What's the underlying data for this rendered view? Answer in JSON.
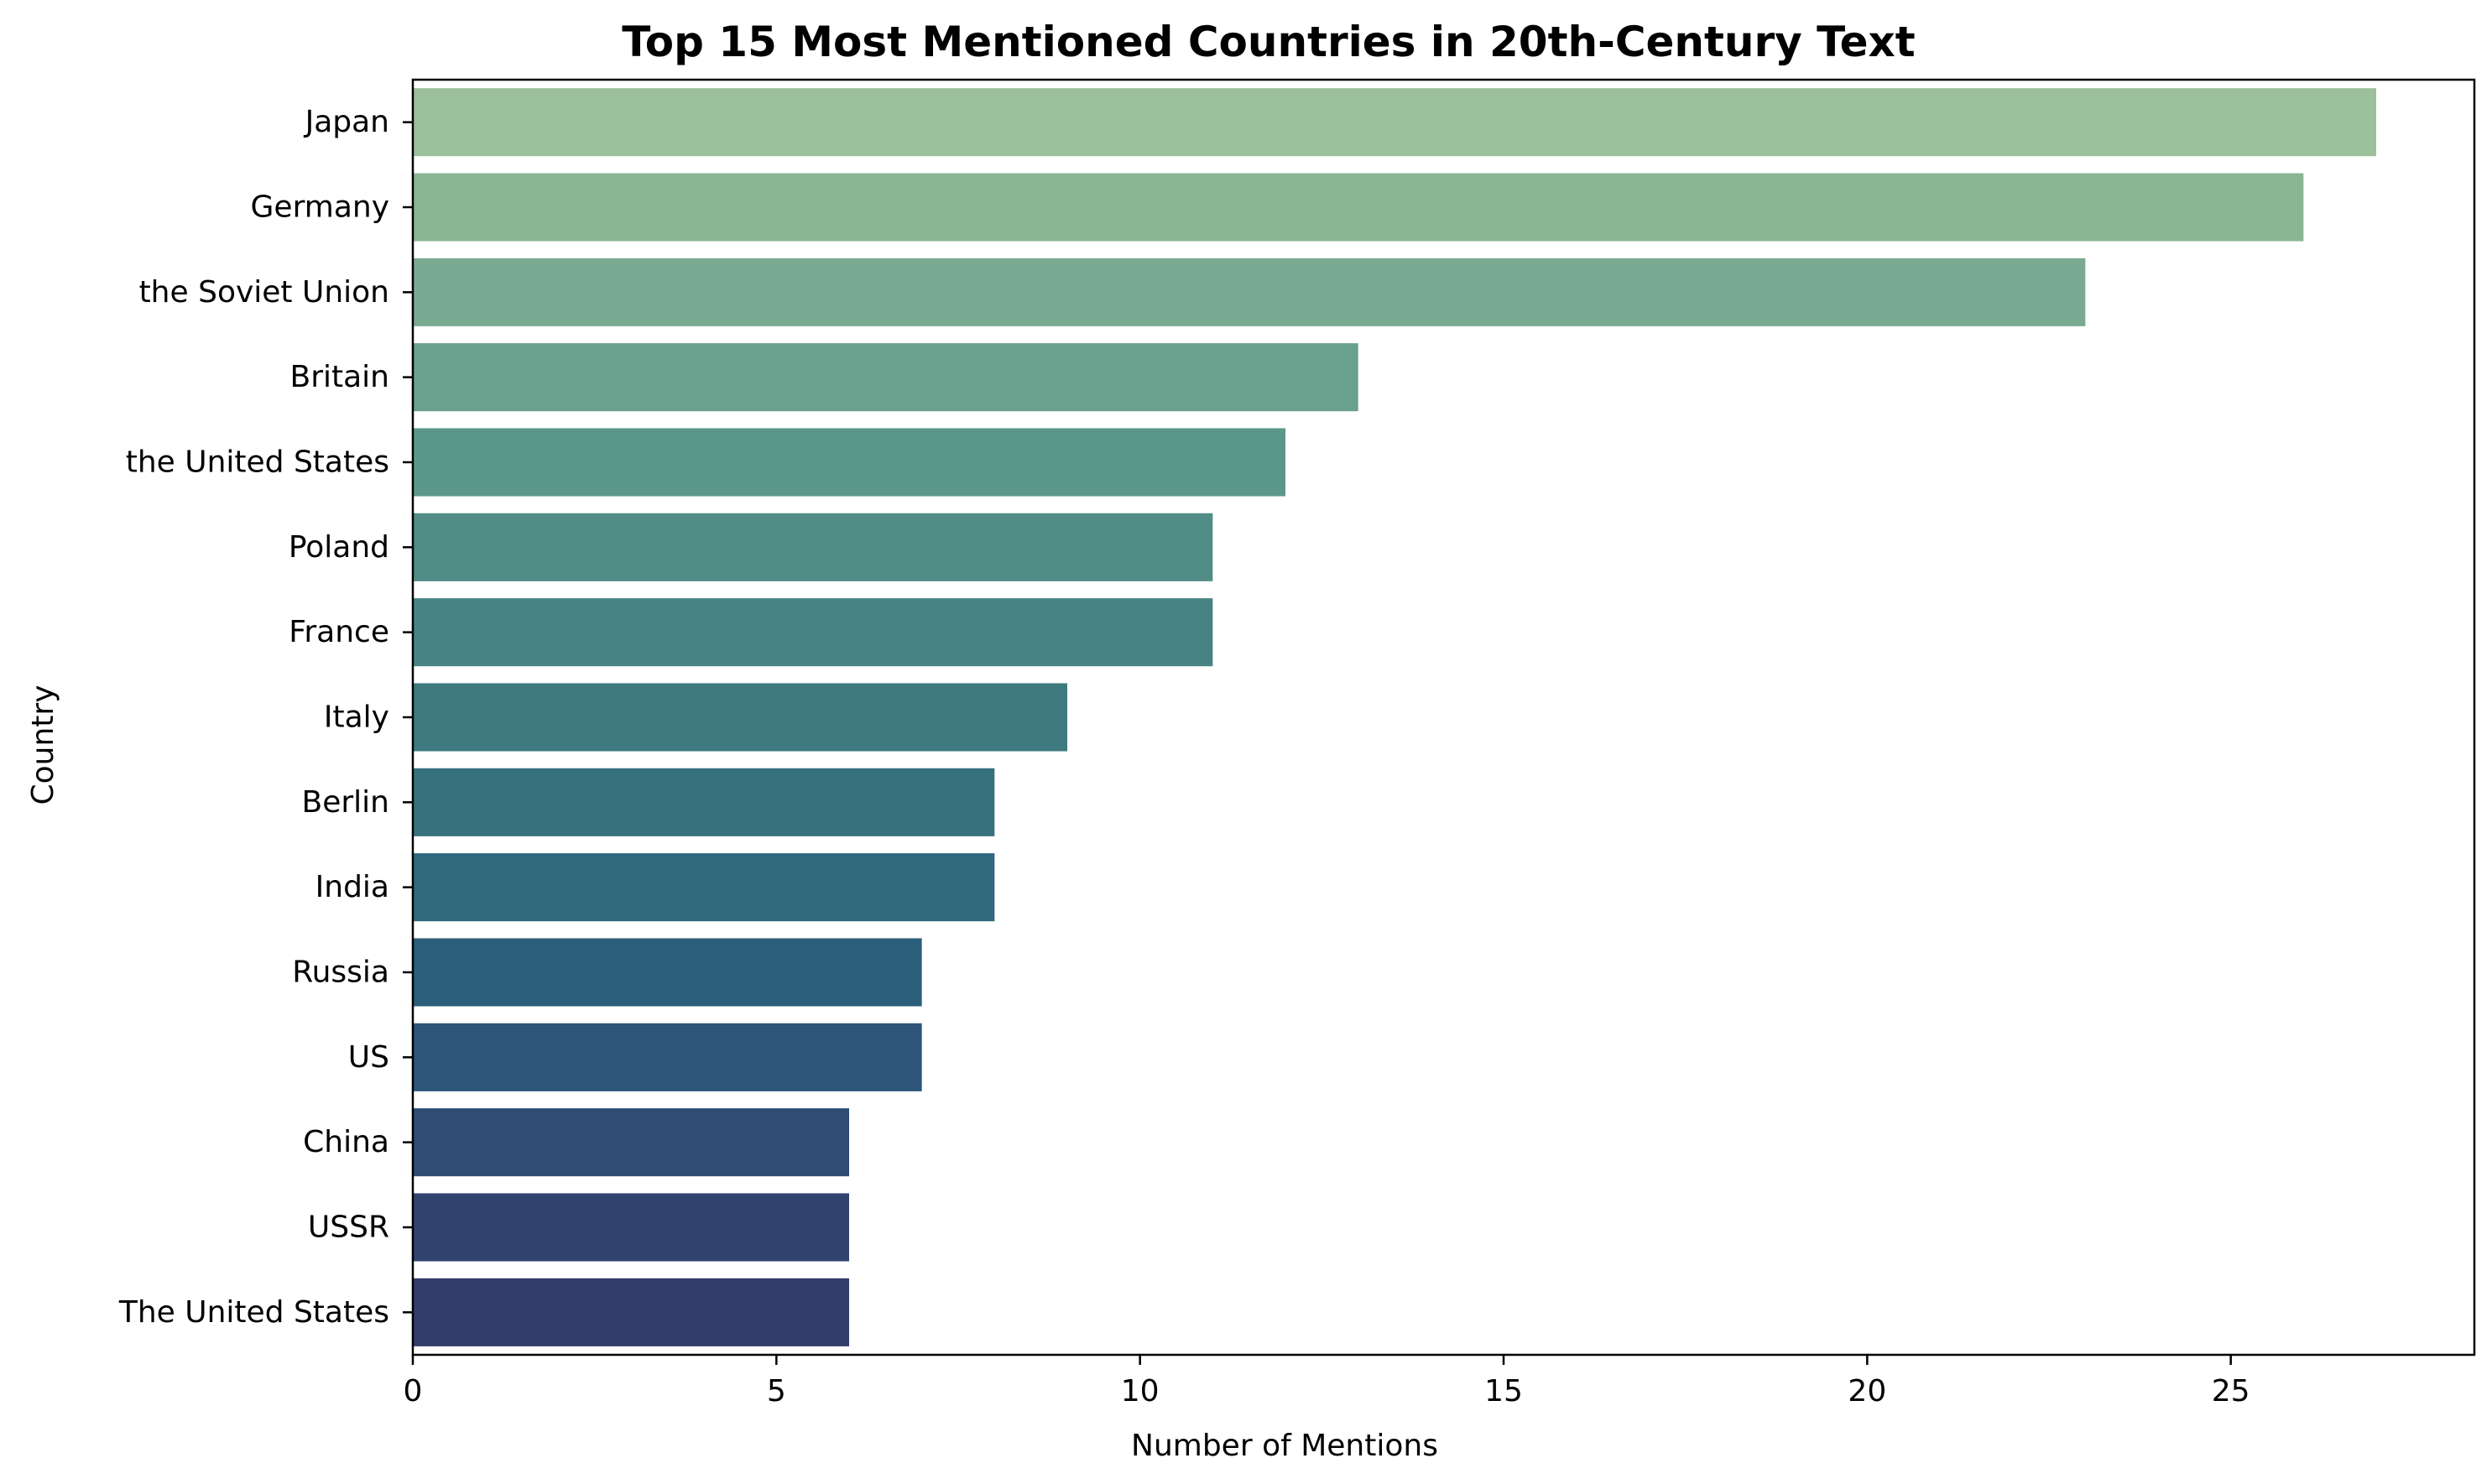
{
  "chart_data": {
    "type": "bar",
    "orientation": "horizontal",
    "title": "Top 15 Most Mentioned Countries in 20th-Century Text",
    "xlabel": "Number of Mentions",
    "ylabel": "Country",
    "xlim": [
      0,
      28.35
    ],
    "xticks": [
      0,
      5,
      10,
      15,
      20,
      25
    ],
    "grid": false,
    "categories": [
      "Japan",
      "Germany",
      "the Soviet Union",
      "Britain",
      "the United States",
      "Poland",
      "France",
      "Italy",
      "Berlin",
      "India",
      "Russia",
      "US",
      "China",
      "USSR",
      "The United States"
    ],
    "values": [
      27,
      26,
      23,
      13,
      12,
      11,
      11,
      9,
      8,
      8,
      7,
      7,
      6,
      6,
      6
    ],
    "colors": [
      "#9bc09b",
      "#8ab693",
      "#7aab92",
      "#6aa18e",
      "#5c988a",
      "#518c87",
      "#478383",
      "#3e7a80",
      "#37717e",
      "#30687d",
      "#2b5e7b",
      "#2c5578",
      "#2e4c74",
      "#31446f",
      "#343c6a"
    ]
  }
}
